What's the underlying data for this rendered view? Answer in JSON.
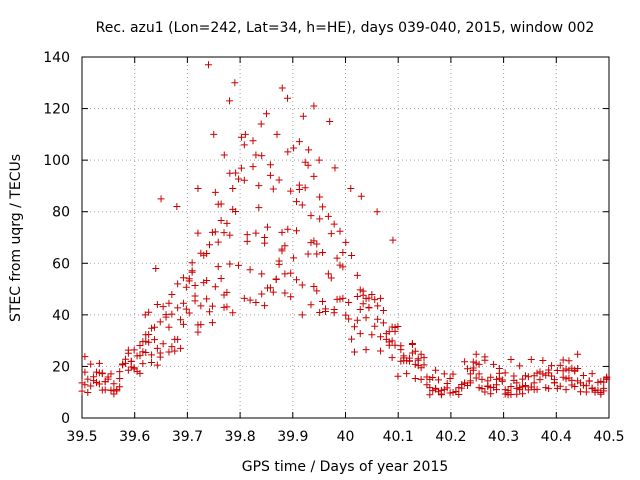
{
  "chart_data": {
    "type": "scatter",
    "title": "Rec. azu1 (Lon=242, Lat=34, h=HE), days 039-040, 2015, window 002",
    "xlabel": "GPS time / Days of year 2015",
    "ylabel": "STEC from uqrg / TECUs",
    "xlim": [
      39.5,
      40.5
    ],
    "ylim": [
      0,
      140
    ],
    "xticks": [
      "39.5",
      "39.6",
      "39.7",
      "39.8",
      "39.9",
      "40",
      "40.1",
      "40.2",
      "40.3",
      "40.4",
      "40.5"
    ],
    "yticks": [
      "0",
      "20",
      "40",
      "60",
      "80",
      "100",
      "120",
      "140"
    ],
    "grid": true,
    "marker": "+",
    "color": "#cc0000",
    "series": [
      {
        "name": "STEC",
        "x": [],
        "y": []
      }
    ],
    "outliers": [
      [
        39.62,
        40
      ],
      [
        39.64,
        58
      ],
      [
        39.65,
        85
      ],
      [
        39.68,
        82
      ],
      [
        39.72,
        89
      ],
      [
        39.74,
        137
      ],
      [
        39.75,
        110
      ],
      [
        39.77,
        102
      ],
      [
        39.78,
        123
      ],
      [
        39.79,
        130
      ],
      [
        39.81,
        110
      ],
      [
        39.83,
        102
      ],
      [
        39.84,
        114
      ],
      [
        39.85,
        118
      ],
      [
        39.87,
        110
      ],
      [
        39.88,
        128
      ],
      [
        39.89,
        124
      ],
      [
        39.92,
        117
      ],
      [
        39.93,
        104
      ],
      [
        39.94,
        121
      ],
      [
        39.95,
        100
      ],
      [
        39.97,
        115
      ],
      [
        39.98,
        97
      ],
      [
        40.01,
        89
      ],
      [
        40.03,
        86
      ],
      [
        40.06,
        80
      ],
      [
        40.09,
        69
      ]
    ]
  }
}
